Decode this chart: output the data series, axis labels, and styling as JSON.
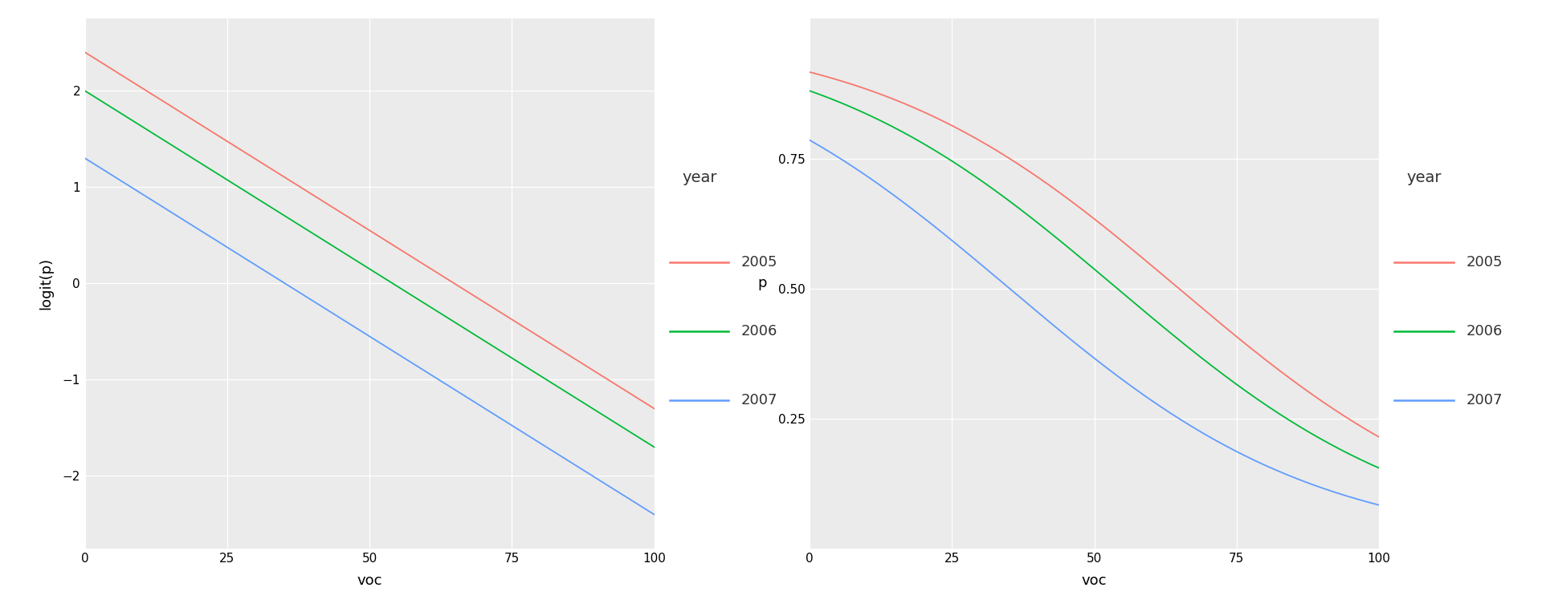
{
  "intercepts": [
    2.4,
    2.0,
    1.3
  ],
  "slope": -0.037,
  "years": [
    "2005",
    "2006",
    "2007"
  ],
  "colors": [
    "#F8766D",
    "#00BA38",
    "#619CFF"
  ],
  "voc_min": 0,
  "voc_max": 100,
  "left_ylim": [
    -2.75,
    2.75
  ],
  "left_yticks": [
    -2,
    -1,
    0,
    1,
    2
  ],
  "right_yticks": [
    0.25,
    0.5,
    0.75
  ],
  "left_ylabel": "logit(p)",
  "right_ylabel": "p",
  "xlabel": "voc",
  "xticks": [
    0,
    25,
    50,
    75,
    100
  ],
  "legend_title": "year",
  "bg_color": "#FFFFFF",
  "panel_bg": "#EBEBEB",
  "grid_color": "#FFFFFF",
  "legend_fontsize": 13,
  "axis_label_fontsize": 13,
  "tick_fontsize": 11
}
